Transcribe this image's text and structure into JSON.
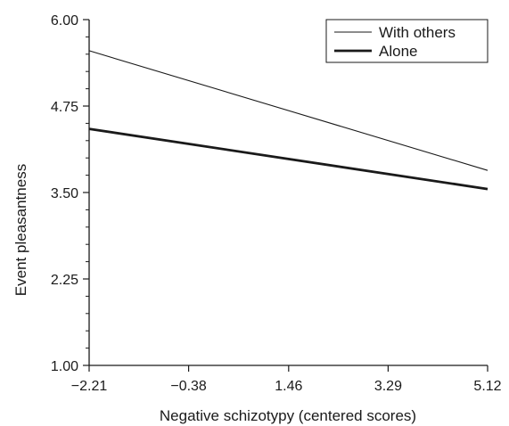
{
  "chart_data": {
    "type": "line",
    "title": "",
    "xlabel": "Negative schizotypy (centered scores)",
    "ylabel": "Event pleasantness",
    "x_ticks": [
      -2.21,
      -0.38,
      1.46,
      3.29,
      5.12
    ],
    "x_tick_labels": [
      "−2.21",
      "−0.38",
      "1.46",
      "3.29",
      "5.12"
    ],
    "y_ticks": [
      1.0,
      2.25,
      3.5,
      4.75,
      6.0
    ],
    "y_tick_labels": [
      "1.00",
      "2.25",
      "3.50",
      "4.75",
      "6.00"
    ],
    "xlim": [
      -2.21,
      5.12
    ],
    "ylim": [
      1.0,
      6.0
    ],
    "y_minor_step": 0.25,
    "grid": false,
    "legend_position": "top-right",
    "series": [
      {
        "name": "With others",
        "style": "thin",
        "color": "#1a1a1a",
        "x": [
          -2.21,
          5.12
        ],
        "y": [
          5.55,
          3.82
        ]
      },
      {
        "name": "Alone",
        "style": "thick",
        "color": "#1a1a1a",
        "x": [
          -2.21,
          5.12
        ],
        "y": [
          4.42,
          3.55
        ]
      }
    ]
  }
}
